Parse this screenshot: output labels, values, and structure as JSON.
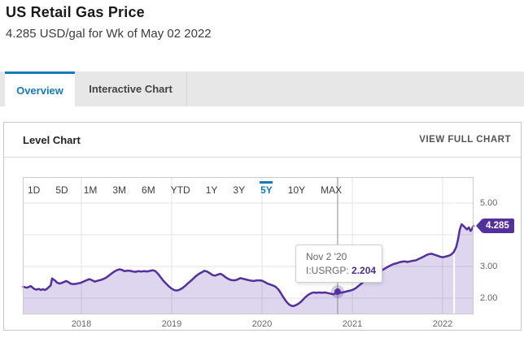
{
  "header": {
    "title": "US Retail Gas Price",
    "subtitle": "4.285 USD/gal for Wk of May 02 2022"
  },
  "tabs": [
    {
      "label": "Overview",
      "active": true
    },
    {
      "label": "Interactive Chart",
      "active": false
    }
  ],
  "panel": {
    "title": "Level Chart",
    "link": "VIEW FULL CHART"
  },
  "ranges": [
    "1D",
    "5D",
    "1M",
    "3M",
    "6M",
    "YTD",
    "1Y",
    "3Y",
    "5Y",
    "10Y",
    "MAX"
  ],
  "active_range": "5Y",
  "tooltip": {
    "date": "Nov 2 '20",
    "series_label": "I:USRGP:",
    "value": "2.204"
  },
  "last_value": {
    "label": "4.285",
    "value": 4.285
  },
  "colors": {
    "accent_blue": "#1779ba",
    "line_purple": "#54309c",
    "area_fill": "rgba(104,64,180,0.22)",
    "gridline": "#e3e3e3",
    "plot_border": "#cccccc",
    "crosshair": "#8a8a8a"
  },
  "chart_data": {
    "type": "area",
    "title": "Level Chart",
    "series_name": "I:USRGP",
    "unit": "USD/gal",
    "xlim": [
      2017.351,
      2022.342
    ],
    "ylim": [
      1.487,
      5.82
    ],
    "x_ticks": [
      {
        "x": 2018,
        "label": "2018"
      },
      {
        "x": 2019,
        "label": "2019"
      },
      {
        "x": 2020,
        "label": "2020"
      },
      {
        "x": 2021,
        "label": "2021"
      },
      {
        "x": 2022,
        "label": "2022"
      }
    ],
    "y_ticks": [
      {
        "v": 5,
        "label": "5.00"
      },
      {
        "v": 4,
        "label": ""
      },
      {
        "v": 3,
        "label": "3.00"
      },
      {
        "v": 2,
        "label": "2.00"
      }
    ],
    "marker": {
      "x": 2020.837,
      "y": 2.204
    },
    "recent_divider_x": 2022.127,
    "points": [
      [
        2017.355,
        2.36
      ],
      [
        2017.38,
        2.34
      ],
      [
        2017.4,
        2.33
      ],
      [
        2017.42,
        2.36
      ],
      [
        2017.44,
        2.38
      ],
      [
        2017.46,
        2.33
      ],
      [
        2017.48,
        2.29
      ],
      [
        2017.5,
        2.27
      ],
      [
        2017.53,
        2.29
      ],
      [
        2017.55,
        2.26
      ],
      [
        2017.57,
        2.28
      ],
      [
        2017.6,
        2.26
      ],
      [
        2017.62,
        2.3
      ],
      [
        2017.64,
        2.35
      ],
      [
        2017.66,
        2.4
      ],
      [
        2017.675,
        2.62
      ],
      [
        2017.69,
        2.59
      ],
      [
        2017.71,
        2.55
      ],
      [
        2017.73,
        2.49
      ],
      [
        2017.76,
        2.46
      ],
      [
        2017.78,
        2.48
      ],
      [
        2017.81,
        2.51
      ],
      [
        2017.83,
        2.54
      ],
      [
        2017.86,
        2.5
      ],
      [
        2017.88,
        2.46
      ],
      [
        2017.91,
        2.44
      ],
      [
        2017.94,
        2.45
      ],
      [
        2017.97,
        2.47
      ],
      [
        2018.0,
        2.49
      ],
      [
        2018.03,
        2.53
      ],
      [
        2018.06,
        2.57
      ],
      [
        2018.09,
        2.6
      ],
      [
        2018.12,
        2.56
      ],
      [
        2018.15,
        2.52
      ],
      [
        2018.18,
        2.55
      ],
      [
        2018.21,
        2.57
      ],
      [
        2018.24,
        2.6
      ],
      [
        2018.27,
        2.64
      ],
      [
        2018.3,
        2.7
      ],
      [
        2018.33,
        2.77
      ],
      [
        2018.36,
        2.83
      ],
      [
        2018.39,
        2.88
      ],
      [
        2018.42,
        2.91
      ],
      [
        2018.45,
        2.89
      ],
      [
        2018.48,
        2.85
      ],
      [
        2018.51,
        2.87
      ],
      [
        2018.54,
        2.86
      ],
      [
        2018.57,
        2.84
      ],
      [
        2018.6,
        2.83
      ],
      [
        2018.63,
        2.85
      ],
      [
        2018.66,
        2.84
      ],
      [
        2018.7,
        2.85
      ],
      [
        2018.73,
        2.84
      ],
      [
        2018.76,
        2.86
      ],
      [
        2018.79,
        2.88
      ],
      [
        2018.82,
        2.85
      ],
      [
        2018.85,
        2.76
      ],
      [
        2018.88,
        2.65
      ],
      [
        2018.91,
        2.54
      ],
      [
        2018.94,
        2.45
      ],
      [
        2018.97,
        2.37
      ],
      [
        2019.0,
        2.3
      ],
      [
        2019.03,
        2.25
      ],
      [
        2019.06,
        2.24
      ],
      [
        2019.09,
        2.27
      ],
      [
        2019.12,
        2.32
      ],
      [
        2019.15,
        2.39
      ],
      [
        2019.18,
        2.47
      ],
      [
        2019.21,
        2.54
      ],
      [
        2019.24,
        2.62
      ],
      [
        2019.27,
        2.7
      ],
      [
        2019.3,
        2.76
      ],
      [
        2019.33,
        2.81
      ],
      [
        2019.36,
        2.86
      ],
      [
        2019.39,
        2.84
      ],
      [
        2019.42,
        2.79
      ],
      [
        2019.45,
        2.73
      ],
      [
        2019.48,
        2.71
      ],
      [
        2019.51,
        2.74
      ],
      [
        2019.54,
        2.77
      ],
      [
        2019.57,
        2.72
      ],
      [
        2019.6,
        2.65
      ],
      [
        2019.63,
        2.6
      ],
      [
        2019.66,
        2.57
      ],
      [
        2019.7,
        2.56
      ],
      [
        2019.73,
        2.59
      ],
      [
        2019.76,
        2.63
      ],
      [
        2019.79,
        2.61
      ],
      [
        2019.82,
        2.59
      ],
      [
        2019.85,
        2.57
      ],
      [
        2019.88,
        2.55
      ],
      [
        2019.91,
        2.54
      ],
      [
        2019.94,
        2.56
      ],
      [
        2019.97,
        2.56
      ],
      [
        2020.0,
        2.55
      ],
      [
        2020.03,
        2.51
      ],
      [
        2020.06,
        2.46
      ],
      [
        2020.09,
        2.43
      ],
      [
        2020.12,
        2.4
      ],
      [
        2020.15,
        2.36
      ],
      [
        2020.18,
        2.28
      ],
      [
        2020.21,
        2.15
      ],
      [
        2020.24,
        2.01
      ],
      [
        2020.27,
        1.89
      ],
      [
        2020.3,
        1.8
      ],
      [
        2020.33,
        1.75
      ],
      [
        2020.36,
        1.76
      ],
      [
        2020.39,
        1.8
      ],
      [
        2020.42,
        1.86
      ],
      [
        2020.45,
        1.94
      ],
      [
        2020.48,
        2.03
      ],
      [
        2020.51,
        2.1
      ],
      [
        2020.54,
        2.15
      ],
      [
        2020.57,
        2.18
      ],
      [
        2020.6,
        2.17
      ],
      [
        2020.63,
        2.18
      ],
      [
        2020.66,
        2.17
      ],
      [
        2020.7,
        2.18
      ],
      [
        2020.73,
        2.16
      ],
      [
        2020.76,
        2.14
      ],
      [
        2020.79,
        2.12
      ],
      [
        2020.82,
        2.16
      ],
      [
        2020.837,
        2.204
      ],
      [
        2020.86,
        2.17
      ],
      [
        2020.89,
        2.18
      ],
      [
        2020.92,
        2.2
      ],
      [
        2020.95,
        2.22
      ],
      [
        2020.98,
        2.24
      ],
      [
        2021.01,
        2.27
      ],
      [
        2021.04,
        2.32
      ],
      [
        2021.07,
        2.39
      ],
      [
        2021.1,
        2.46
      ],
      [
        2021.13,
        2.53
      ],
      [
        2021.16,
        2.62
      ],
      [
        2021.19,
        2.72
      ],
      [
        2021.22,
        2.78
      ],
      [
        2021.25,
        2.81
      ],
      [
        2021.28,
        2.83
      ],
      [
        2021.31,
        2.86
      ],
      [
        2021.34,
        2.9
      ],
      [
        2021.37,
        2.95
      ],
      [
        2021.4,
        3.0
      ],
      [
        2021.43,
        3.04
      ],
      [
        2021.46,
        3.08
      ],
      [
        2021.49,
        3.1
      ],
      [
        2021.52,
        3.13
      ],
      [
        2021.55,
        3.15
      ],
      [
        2021.58,
        3.16
      ],
      [
        2021.61,
        3.14
      ],
      [
        2021.64,
        3.16
      ],
      [
        2021.67,
        3.18
      ],
      [
        2021.7,
        3.19
      ],
      [
        2021.73,
        3.23
      ],
      [
        2021.76,
        3.27
      ],
      [
        2021.79,
        3.31
      ],
      [
        2021.82,
        3.36
      ],
      [
        2021.85,
        3.39
      ],
      [
        2021.88,
        3.4
      ],
      [
        2021.91,
        3.37
      ],
      [
        2021.94,
        3.34
      ],
      [
        2021.97,
        3.31
      ],
      [
        2022.0,
        3.29
      ],
      [
        2022.03,
        3.31
      ],
      [
        2022.06,
        3.33
      ],
      [
        2022.09,
        3.37
      ],
      [
        2022.12,
        3.44
      ],
      [
        2022.15,
        3.61
      ],
      [
        2022.17,
        3.85
      ],
      [
        2022.19,
        4.17
      ],
      [
        2022.21,
        4.33
      ],
      [
        2022.23,
        4.28
      ],
      [
        2022.25,
        4.22
      ],
      [
        2022.27,
        4.17
      ],
      [
        2022.29,
        4.23
      ],
      [
        2022.31,
        4.12
      ],
      [
        2022.325,
        4.18
      ],
      [
        2022.34,
        4.285
      ]
    ]
  }
}
